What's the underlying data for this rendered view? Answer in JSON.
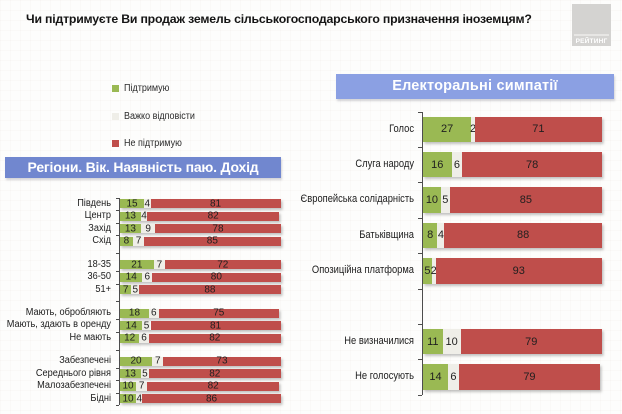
{
  "title": "Чи підтримуєте Ви продаж земель сільськогосподарського призначення іноземцям?",
  "logo": {
    "label": "РЕЙТИНГ"
  },
  "legend": {
    "items": [
      {
        "label": "Підтримую",
        "color": "#9ab953"
      },
      {
        "label": "Важко відповісти",
        "color": "#efeee8"
      },
      {
        "label": "Не підтримую",
        "color": "#bf4e4b"
      }
    ]
  },
  "sections": {
    "left": {
      "title": "Регіони. Вік. Наявність паю. Дохід"
    },
    "right": {
      "title": "Електоральні симпатії"
    }
  },
  "colors": {
    "support": "#9ab953",
    "undecided": "#efeee8",
    "oppose": "#bf4e4b",
    "left_header_bg": "#7187cf",
    "right_header_bg": "#8ba0e3",
    "logo_bg": "#d4d3d1"
  },
  "chart_data": [
    {
      "type": "bar",
      "orientation": "horizontal",
      "stacked": true,
      "title": "Регіони. Вік. Наявність паю. Дохід",
      "series_names": [
        "Підтримую",
        "Важко відповісти",
        "Не підтримую"
      ],
      "xlim": [
        0,
        100
      ],
      "groups": [
        {
          "rows": [
            {
              "label": "Південь",
              "values": [
                15,
                4,
                81
              ]
            },
            {
              "label": "Центр",
              "values": [
                13,
                4,
                82
              ]
            },
            {
              "label": "Захід",
              "values": [
                13,
                9,
                78
              ]
            },
            {
              "label": "Схід",
              "values": [
                8,
                7,
                85
              ]
            }
          ]
        },
        {
          "rows": [
            {
              "label": "18-35",
              "values": [
                21,
                7,
                72
              ]
            },
            {
              "label": "36-50",
              "values": [
                14,
                6,
                80
              ]
            },
            {
              "label": "51+",
              "values": [
                7,
                5,
                88
              ]
            }
          ]
        },
        {
          "rows": [
            {
              "label": "Мають, обробляють",
              "values": [
                18,
                6,
                75
              ]
            },
            {
              "label": "Мають, здають в оренду",
              "values": [
                14,
                5,
                81
              ]
            },
            {
              "label": "Не мають",
              "values": [
                12,
                6,
                82
              ]
            }
          ]
        },
        {
          "rows": [
            {
              "label": "Забезпечені",
              "values": [
                20,
                7,
                73
              ]
            },
            {
              "label": "Середнього рівня",
              "values": [
                13,
                5,
                82
              ]
            },
            {
              "label": "Малозабезпечені",
              "values": [
                10,
                7,
                82
              ]
            },
            {
              "label": "Бідні",
              "values": [
                10,
                4,
                86
              ]
            }
          ]
        }
      ]
    },
    {
      "type": "bar",
      "orientation": "horizontal",
      "stacked": true,
      "title": "Електоральні симпатії",
      "series_names": [
        "Підтримую",
        "Важко відповісти",
        "Не підтримую"
      ],
      "xlim": [
        0,
        100
      ],
      "groups": [
        {
          "rows": [
            {
              "label": "Голос",
              "values": [
                27,
                2,
                71
              ]
            },
            {
              "label": "Слуга народу",
              "values": [
                16,
                6,
                78
              ]
            },
            {
              "label": "Європейська солідарність",
              "values": [
                10,
                5,
                85
              ]
            },
            {
              "label": "Батьківщина",
              "values": [
                8,
                4,
                88
              ]
            },
            {
              "label": "Опозиційна платформа",
              "values": [
                5,
                2,
                93
              ]
            },
            {
              "spacer": true
            },
            {
              "label": "Не визначилися",
              "values": [
                11,
                10,
                79
              ]
            },
            {
              "label": "Не голосують",
              "values": [
                14,
                6,
                79
              ]
            }
          ]
        }
      ]
    }
  ]
}
